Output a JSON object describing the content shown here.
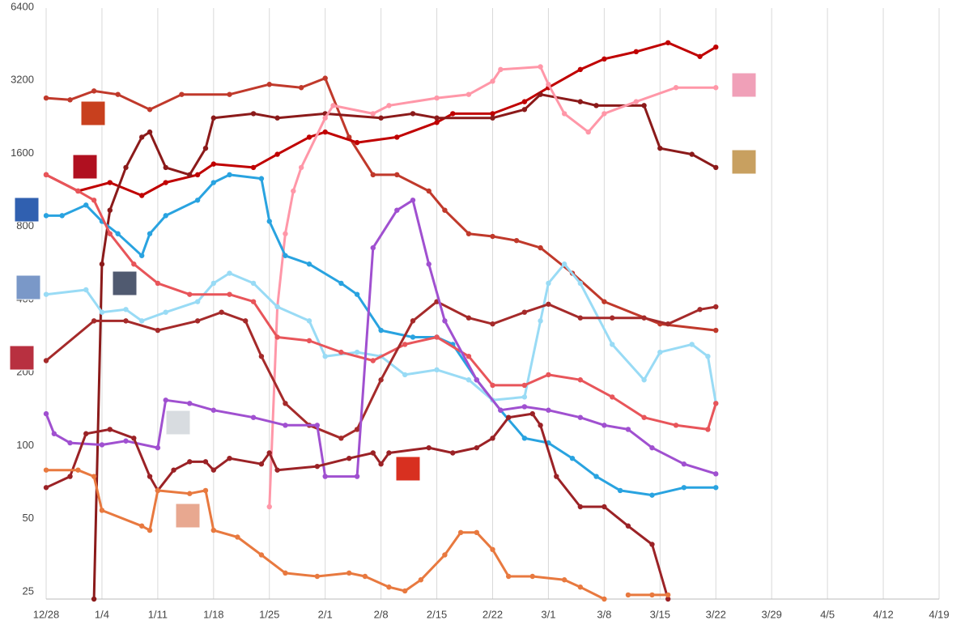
{
  "chart_data": {
    "type": "line",
    "log_scale_y": true,
    "grid": "x",
    "xlim": [
      0,
      112
    ],
    "ylim": [
      25,
      6400
    ],
    "yticks": [
      25,
      50,
      100,
      200,
      400,
      800,
      1600,
      3200,
      6400
    ],
    "xticks": [
      {
        "value": 0,
        "label": "12/28"
      },
      {
        "value": 7,
        "label": "1/4"
      },
      {
        "value": 14,
        "label": "1/11"
      },
      {
        "value": 21,
        "label": "1/18"
      },
      {
        "value": 28,
        "label": "1/25"
      },
      {
        "value": 35,
        "label": "2/1"
      },
      {
        "value": 42,
        "label": "2/8"
      },
      {
        "value": 49,
        "label": "2/15"
      },
      {
        "value": 56,
        "label": "2/22"
      },
      {
        "value": 63,
        "label": "3/1"
      },
      {
        "value": 70,
        "label": "3/8"
      },
      {
        "value": 77,
        "label": "3/15"
      },
      {
        "value": 84,
        "label": "3/22"
      },
      {
        "value": 91,
        "label": "3/29"
      },
      {
        "value": 98,
        "label": "4/5"
      },
      {
        "value": 105,
        "label": "4/12"
      },
      {
        "value": 112,
        "label": "4/19"
      }
    ],
    "series": [
      {
        "color": "#c0392b",
        "x": [
          0,
          3,
          6,
          9,
          13,
          17,
          23,
          28,
          32,
          35,
          38,
          41,
          44,
          48,
          50,
          53,
          56,
          59,
          62,
          66,
          70,
          77,
          84
        ],
        "values": [
          2900,
          2850,
          3100,
          3000,
          2600,
          3000,
          3000,
          3300,
          3200,
          3500,
          2000,
          1400,
          1400,
          1200,
          1000,
          800,
          780,
          750,
          700,
          550,
          420,
          340,
          320
        ]
      },
      {
        "color": "#c00000",
        "x": [
          0,
          4,
          8,
          12,
          15,
          19,
          21,
          26,
          29,
          33,
          35,
          39,
          44,
          49,
          51,
          56,
          60,
          63,
          67,
          70,
          74,
          78,
          82,
          84
        ],
        "values": [
          1400,
          1200,
          1300,
          1150,
          1300,
          1400,
          1550,
          1500,
          1700,
          2000,
          2100,
          1900,
          2000,
          2300,
          2500,
          2500,
          2800,
          3200,
          3800,
          4200,
          4500,
          4900,
          4300,
          4700
        ]
      },
      {
        "color": "#8b1a1a",
        "x": [
          6,
          7,
          8,
          10,
          12,
          13,
          15,
          18,
          20,
          21,
          26,
          29,
          35,
          42,
          46,
          49,
          56,
          60,
          62,
          67,
          69,
          75,
          77,
          81,
          84
        ],
        "values": [
          25,
          600,
          1000,
          1500,
          2000,
          2100,
          1500,
          1400,
          1800,
          2400,
          2500,
          2400,
          2500,
          2400,
          2500,
          2400,
          2400,
          2600,
          3000,
          2800,
          2700,
          2700,
          1800,
          1700,
          1500
        ]
      },
      {
        "color": "#ff97a8",
        "x": [
          28,
          29,
          30,
          31,
          32,
          35,
          36,
          41,
          43,
          49,
          53,
          56,
          57,
          62,
          63,
          65,
          68,
          70,
          74,
          79,
          84
        ],
        "values": [
          60,
          400,
          800,
          1200,
          1500,
          2400,
          2700,
          2500,
          2700,
          2900,
          3000,
          3400,
          3800,
          3900,
          3300,
          2500,
          2100,
          2500,
          2800,
          3200,
          3200
        ]
      },
      {
        "color": "#29a3e0",
        "x": [
          0,
          2,
          5,
          7,
          9,
          12,
          13,
          15,
          19,
          21,
          23,
          27,
          28,
          30,
          33,
          37,
          39,
          42,
          46,
          49,
          51,
          54,
          57,
          60,
          63,
          66,
          69,
          72,
          76,
          80,
          84
        ],
        "values": [
          950,
          950,
          1050,
          900,
          800,
          650,
          800,
          950,
          1100,
          1300,
          1400,
          1350,
          900,
          650,
          600,
          500,
          450,
          320,
          300,
          300,
          280,
          200,
          150,
          115,
          110,
          95,
          80,
          70,
          67,
          72,
          72
        ]
      },
      {
        "color": "#99dbf5",
        "x": [
          0,
          5,
          7,
          10,
          12,
          15,
          19,
          21,
          23,
          26,
          29,
          33,
          35,
          39,
          42,
          45,
          49,
          53,
          56,
          60,
          62,
          63,
          65,
          67,
          71,
          75,
          77,
          81,
          83,
          84
        ],
        "values": [
          450,
          470,
          380,
          390,
          350,
          380,
          420,
          500,
          550,
          500,
          400,
          350,
          250,
          260,
          250,
          210,
          220,
          200,
          165,
          170,
          350,
          500,
          600,
          500,
          280,
          200,
          260,
          280,
          250,
          160
        ]
      },
      {
        "color": "#e8555a",
        "x": [
          0,
          4,
          6,
          8,
          11,
          14,
          18,
          23,
          26,
          29,
          33,
          37,
          41,
          45,
          49,
          53,
          56,
          60,
          63,
          67,
          71,
          75,
          79,
          83,
          84
        ],
        "values": [
          1400,
          1200,
          1100,
          800,
          600,
          500,
          450,
          450,
          420,
          300,
          290,
          260,
          240,
          280,
          300,
          250,
          190,
          190,
          210,
          200,
          170,
          140,
          130,
          125,
          160
        ]
      },
      {
        "color": "#a52a2a",
        "x": [
          0,
          6,
          10,
          14,
          19,
          22,
          25,
          27,
          30,
          33,
          37,
          39,
          42,
          46,
          49,
          53,
          56,
          60,
          63,
          67,
          71,
          75,
          78,
          82,
          84
        ],
        "values": [
          240,
          350,
          350,
          320,
          350,
          380,
          350,
          250,
          160,
          130,
          115,
          125,
          200,
          350,
          420,
          360,
          340,
          380,
          410,
          360,
          360,
          360,
          340,
          390,
          400
        ]
      },
      {
        "color": "#a050d0",
        "x": [
          0,
          1,
          3,
          7,
          10,
          14,
          15,
          18,
          21,
          26,
          30,
          34,
          35,
          39,
          41,
          44,
          46,
          48,
          50,
          54,
          57,
          60,
          63,
          67,
          70,
          73,
          76,
          80,
          84
        ],
        "values": [
          145,
          120,
          110,
          108,
          112,
          105,
          165,
          160,
          150,
          140,
          130,
          130,
          80,
          80,
          700,
          1000,
          1100,
          600,
          350,
          200,
          150,
          155,
          150,
          140,
          130,
          125,
          105,
          90,
          82
        ]
      },
      {
        "color": "#9b2226",
        "x": [
          0,
          3,
          5,
          8,
          11,
          13,
          14,
          16,
          18,
          20,
          21,
          23,
          27,
          28,
          29,
          34,
          38,
          41,
          42,
          43,
          48,
          51,
          54,
          56,
          58,
          61,
          62,
          64,
          67,
          70,
          73,
          76,
          78
        ],
        "values": [
          72,
          80,
          120,
          125,
          115,
          80,
          70,
          85,
          92,
          92,
          85,
          95,
          90,
          100,
          85,
          88,
          95,
          100,
          90,
          100,
          105,
          100,
          105,
          115,
          140,
          145,
          130,
          80,
          60,
          60,
          50,
          42,
          25
        ]
      },
      {
        "color": "#e8793f",
        "x": [
          0,
          4,
          6,
          7,
          12,
          13,
          14,
          18,
          20,
          21,
          24,
          27,
          30,
          34,
          38,
          40,
          43,
          45,
          47,
          50,
          52,
          54,
          56,
          58,
          61,
          65,
          67,
          70,
          71,
          73,
          76,
          78
        ],
        "values": [
          85,
          85,
          80,
          58,
          50,
          48,
          70,
          68,
          70,
          48,
          45,
          38,
          32,
          31,
          32,
          31,
          28,
          27,
          30,
          38,
          47,
          47,
          40,
          31,
          31,
          30,
          28,
          25,
          null,
          26,
          26,
          26
        ]
      }
    ]
  }
}
